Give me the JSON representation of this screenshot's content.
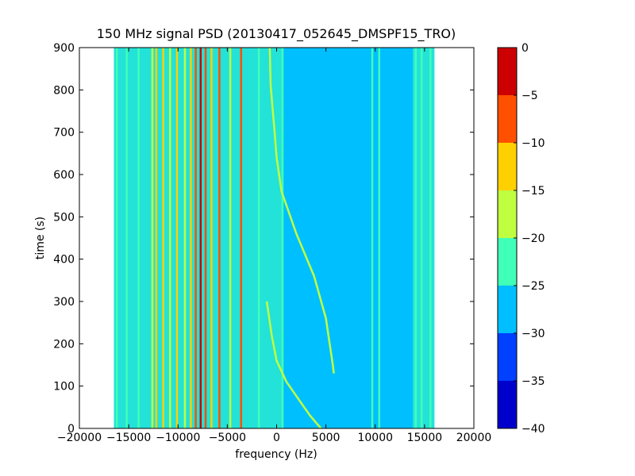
{
  "chart_data": {
    "type": "heatmap",
    "title": "150 MHz signal PSD (20130417_052645_DMSPF15_TRO)",
    "xlabel": "frequency (Hz)",
    "ylabel": "time (s)",
    "xlim": [
      -20000,
      20000
    ],
    "ylim": [
      0,
      900
    ],
    "xticks": [
      -20000,
      -15000,
      -10000,
      -5000,
      0,
      5000,
      10000,
      15000,
      20000
    ],
    "xtick_labels": [
      "−20000",
      "−15000",
      "−10000",
      "−5000",
      "0",
      "5000",
      "10000",
      "15000",
      "20000"
    ],
    "yticks": [
      0,
      100,
      200,
      300,
      400,
      500,
      600,
      700,
      800,
      900
    ],
    "ytick_labels": [
      "0",
      "100",
      "200",
      "300",
      "400",
      "500",
      "600",
      "700",
      "800",
      "900"
    ],
    "colorbar": {
      "levels": [
        -40,
        -35,
        -30,
        -25,
        -20,
        -15,
        -10,
        -5,
        0
      ],
      "tick_labels": [
        "−40",
        "−35",
        "−30",
        "−25",
        "−20",
        "−15",
        "−10",
        "−5",
        "0"
      ],
      "colors": [
        "#0000cc",
        "#0040ff",
        "#00bfff",
        "#40ffb8",
        "#bfff3f",
        "#ffd000",
        "#ff5000",
        "#cc0000"
      ]
    },
    "background_level": -27.5,
    "occupied_band_hz": [
      -16500,
      16000
    ],
    "band_segments": [
      {
        "from": -16500,
        "to": -3000,
        "level": -22.5
      },
      {
        "from": -3000,
        "to": 700,
        "level": -22.5
      },
      {
        "from": 700,
        "to": 9300,
        "level": -27.5
      },
      {
        "from": 9300,
        "to": 10900,
        "level": -27.5
      },
      {
        "from": 10900,
        "to": 13800,
        "level": -27.5
      },
      {
        "from": 13800,
        "to": 16000,
        "level": -22.5
      }
    ],
    "vertical_lines": [
      {
        "freq": -16200,
        "level": -22.5
      },
      {
        "freq": -15200,
        "level": -22.5
      },
      {
        "freq": -14000,
        "level": -22.5
      },
      {
        "freq": -12600,
        "level": -17.5
      },
      {
        "freq": -12200,
        "level": -12.5
      },
      {
        "freq": -11500,
        "level": -12.5
      },
      {
        "freq": -10800,
        "level": -17.5
      },
      {
        "freq": -10100,
        "level": -12.5
      },
      {
        "freq": -9300,
        "level": -17.5
      },
      {
        "freq": -8700,
        "level": -12.5
      },
      {
        "freq": -8200,
        "level": -7.5
      },
      {
        "freq": -7700,
        "level": -2.5
      },
      {
        "freq": -7200,
        "level": -7.5
      },
      {
        "freq": -6600,
        "level": -12.5
      },
      {
        "freq": -5800,
        "level": -7.5
      },
      {
        "freq": -4700,
        "level": -17.5
      },
      {
        "freq": -3600,
        "level": -7.5
      },
      {
        "freq": -1800,
        "level": -22.5
      },
      {
        "freq": 600,
        "level": -22.5
      },
      {
        "freq": 9700,
        "level": -22.5
      },
      {
        "freq": 10400,
        "level": -22.5
      },
      {
        "freq": 14100,
        "level": -22.5
      },
      {
        "freq": 14700,
        "level": -22.5
      },
      {
        "freq": 15600,
        "level": -22.5
      }
    ],
    "doppler_traces": [
      {
        "level": -17.5,
        "points": [
          [
            -700,
            900
          ],
          [
            -600,
            810
          ],
          [
            -200,
            700
          ],
          [
            0,
            640
          ],
          [
            500,
            560
          ],
          [
            2000,
            460
          ],
          [
            3800,
            360
          ],
          [
            5000,
            260
          ],
          [
            5700,
            150
          ],
          [
            5800,
            130
          ]
        ]
      },
      {
        "level": -17.5,
        "points": [
          [
            -1000,
            300
          ],
          [
            -500,
            220
          ],
          [
            0,
            160
          ],
          [
            1000,
            110
          ],
          [
            2200,
            70
          ],
          [
            3400,
            30
          ],
          [
            4500,
            0
          ]
        ]
      }
    ]
  }
}
